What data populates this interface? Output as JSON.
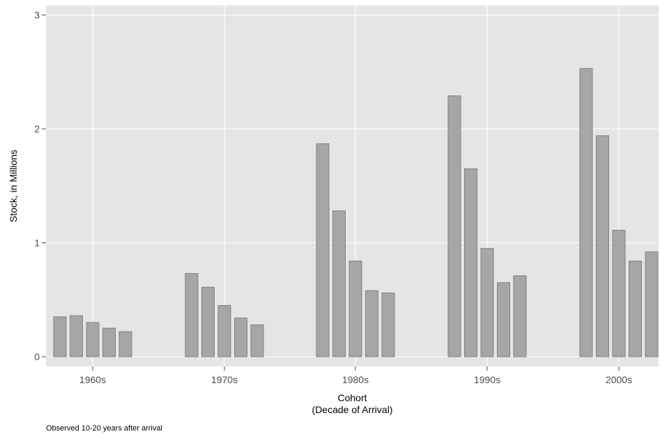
{
  "chart_data": {
    "type": "bar",
    "xlabel_lines": [
      "Cohort",
      "(Decade of Arrival)"
    ],
    "ylabel": "Stock, in Millions",
    "caption": "Observed 10-20 years after arrival",
    "ylim": [
      0,
      3.05
    ],
    "y_ticks": [
      "0",
      "1",
      "2",
      "3"
    ],
    "grid": true,
    "legend": "none",
    "colors": {
      "panel": "#e5e5e5",
      "grid": "#ffffff",
      "bar_fill": "#a6a6a6",
      "bar_stroke": "#808080"
    },
    "groups": [
      {
        "label": "1960s",
        "values": [
          0.35,
          0.36,
          0.3,
          0.25,
          0.22
        ]
      },
      {
        "label": "1970s",
        "values": [
          0.73,
          0.61,
          0.45,
          0.34,
          0.28
        ]
      },
      {
        "label": "1980s",
        "values": [
          1.87,
          1.28,
          0.84,
          0.58,
          0.56
        ]
      },
      {
        "label": "1990s",
        "values": [
          2.29,
          1.65,
          0.95,
          0.65,
          0.71
        ]
      },
      {
        "label": "2000s",
        "values": [
          2.53,
          1.94,
          1.11,
          0.84,
          0.92
        ]
      }
    ]
  }
}
